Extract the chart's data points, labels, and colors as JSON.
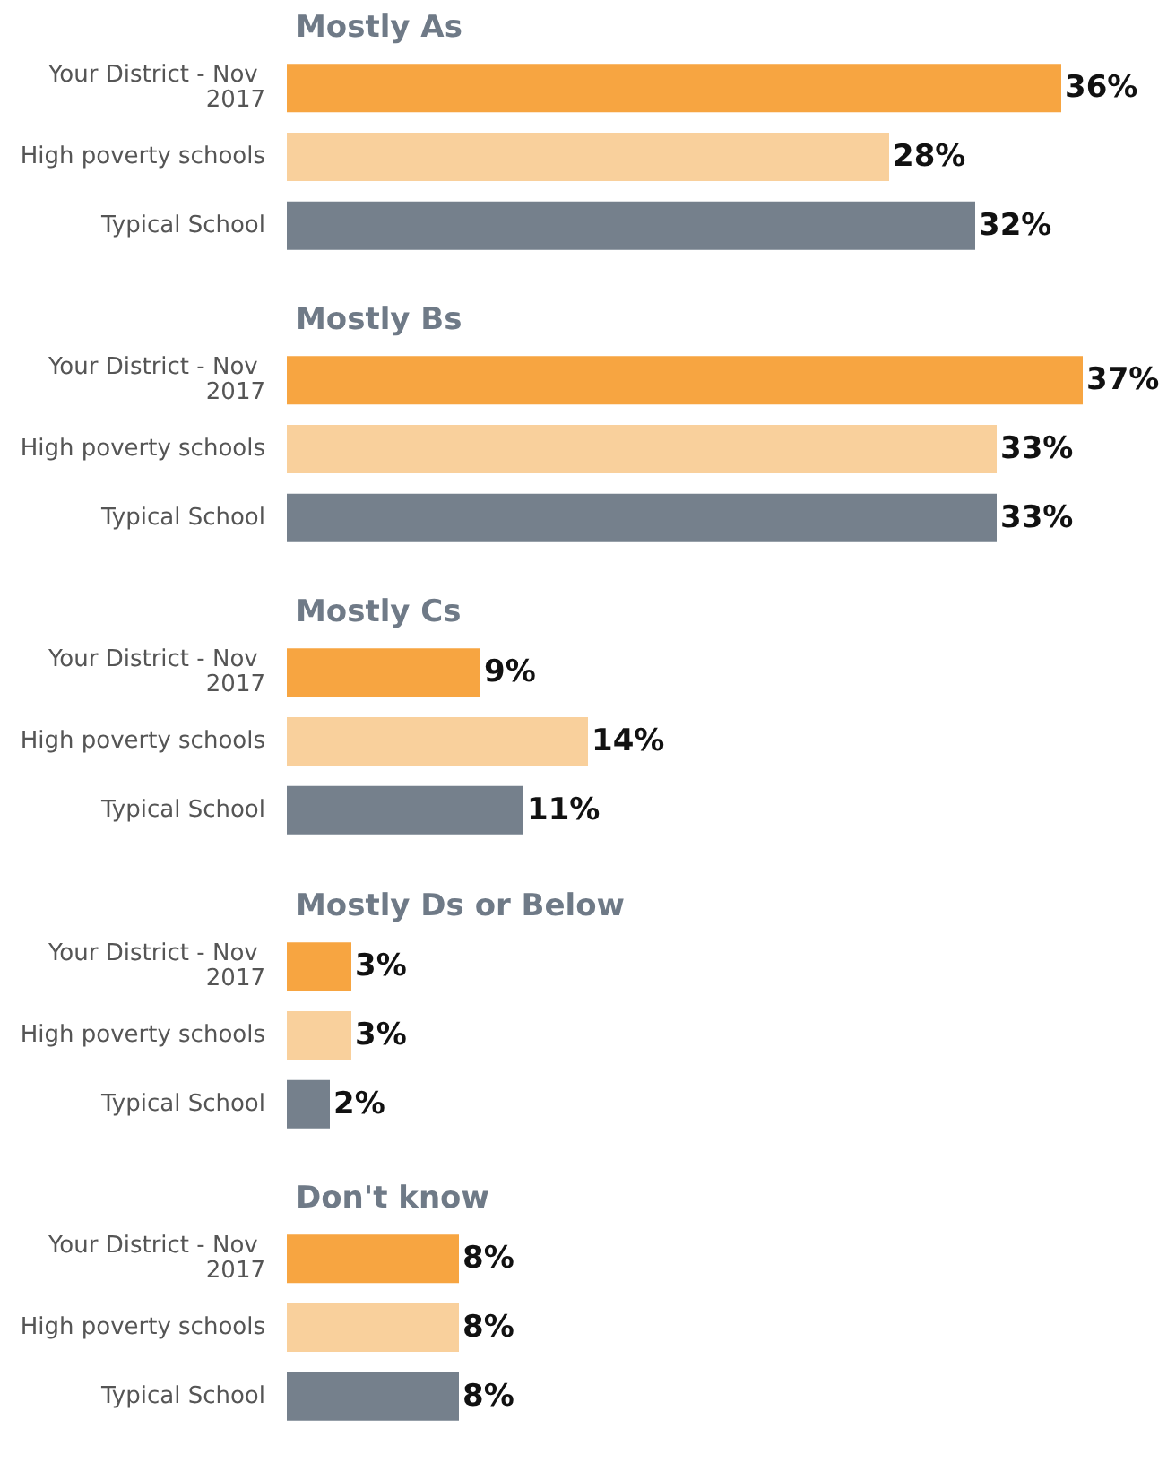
{
  "chart_data": [
    {
      "type": "bar",
      "orientation": "horizontal",
      "title": "Mostly As",
      "categories": [
        "Your District - Nov 2017",
        "High poverty schools",
        "Typical School"
      ],
      "values": [
        36,
        28,
        32
      ],
      "value_labels": [
        "36%",
        "28%",
        "32%"
      ],
      "colors": [
        "#f7a541",
        "#f9d09c",
        "#75808c"
      ],
      "tick_labels": "y"
    },
    {
      "type": "bar",
      "orientation": "horizontal",
      "title": "Mostly Bs",
      "categories": [
        "Your District - Nov 2017",
        "High poverty schools",
        "Typical School"
      ],
      "values": [
        37,
        33,
        33
      ],
      "value_labels": [
        "37%",
        "33%",
        "33%"
      ],
      "colors": [
        "#f7a541",
        "#f9d09c",
        "#75808c"
      ],
      "tick_labels": "y"
    },
    {
      "type": "bar",
      "orientation": "horizontal",
      "title": "Mostly Cs",
      "categories": [
        "Your District - Nov 2017",
        "High poverty schools",
        "Typical School"
      ],
      "values": [
        9,
        14,
        11
      ],
      "value_labels": [
        "9%",
        "14%",
        "11%"
      ],
      "colors": [
        "#f7a541",
        "#f9d09c",
        "#75808c"
      ],
      "tick_labels": "y"
    },
    {
      "type": "bar",
      "orientation": "horizontal",
      "title": "Mostly Ds or Below",
      "categories": [
        "Your District - Nov 2017",
        "High poverty schools",
        "Typical School"
      ],
      "values": [
        3,
        3,
        2
      ],
      "value_labels": [
        "3%",
        "3%",
        "2%"
      ],
      "colors": [
        "#f7a541",
        "#f9d09c",
        "#75808c"
      ],
      "tick_labels": "y"
    },
    {
      "type": "bar",
      "orientation": "horizontal",
      "title": "Don't know",
      "categories": [
        "Your District - Nov 2017",
        "High poverty schools",
        "Typical School"
      ],
      "values": [
        8,
        8,
        8
      ],
      "value_labels": [
        "8%",
        "8%",
        "8%"
      ],
      "colors": [
        "#f7a541",
        "#f9d09c",
        "#75808c"
      ],
      "tick_labels": "y"
    }
  ]
}
